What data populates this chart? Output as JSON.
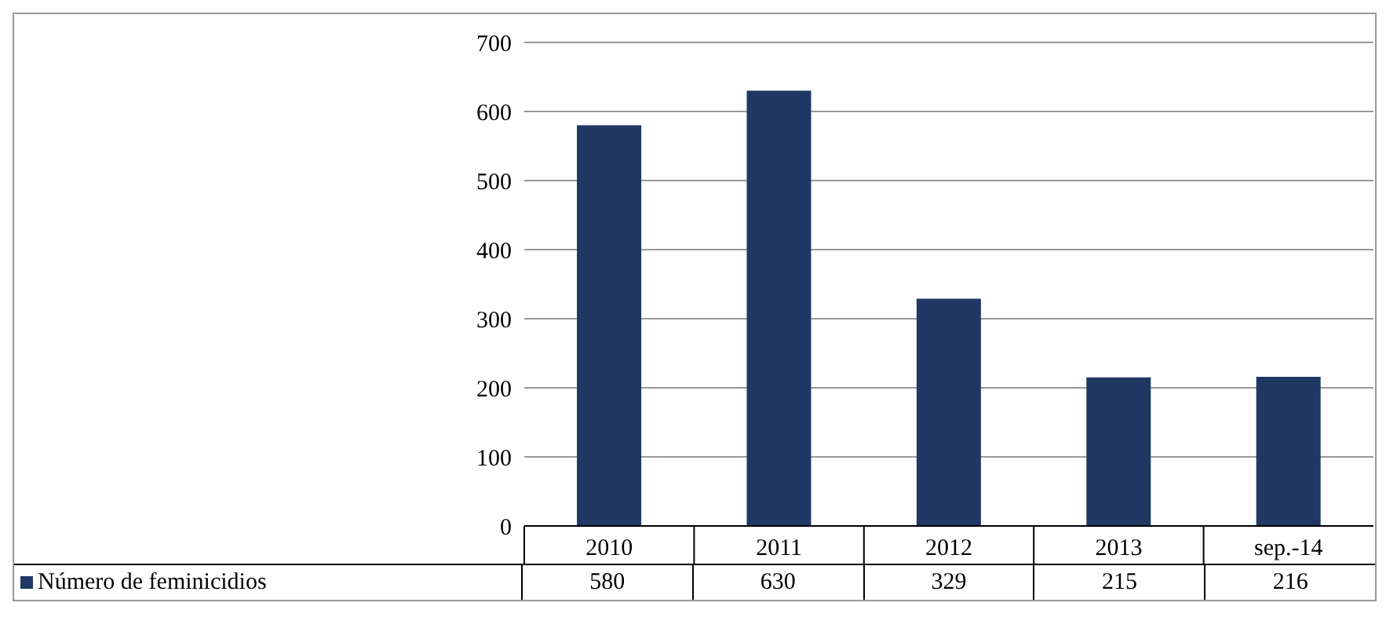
{
  "chart_data": {
    "type": "bar",
    "categories": [
      "2010",
      "2011",
      "2012",
      "2013",
      "sep.-14"
    ],
    "series": [
      {
        "name": "Número de feminicidios",
        "color": "#1f3864",
        "values": [
          580,
          630,
          329,
          215,
          216
        ]
      }
    ],
    "ylim": [
      0,
      700
    ],
    "yticks": [
      0,
      100,
      200,
      300,
      400,
      500,
      600,
      700
    ],
    "grid": "y",
    "legend": "bottom left",
    "data_labels": true
  }
}
